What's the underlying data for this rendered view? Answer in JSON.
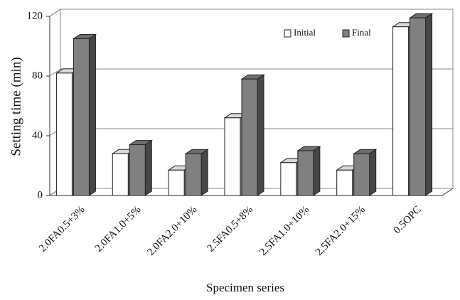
{
  "chart_data": {
    "type": "bar3d",
    "x_label": "Specimen series",
    "y_label": "Setting time (min)",
    "categories": [
      "2.0FA0.5+3%",
      "2.0FA1.0+5%",
      "2.0FA2.0+10%",
      "2.5FA0.5+8%",
      "2.5FA1.0+10%",
      "2.5FA2.0+15%",
      "0.5OPC"
    ],
    "series": [
      {
        "name": "Initial",
        "color": "#ffffff",
        "values": [
          82,
          28,
          17,
          52,
          22,
          17,
          113
        ]
      },
      {
        "name": "Final",
        "color": "#808080",
        "values": [
          105,
          34,
          28,
          78,
          30,
          28,
          119
        ]
      }
    ],
    "ylim": [
      0,
      120
    ],
    "yticks": [
      0,
      40,
      80,
      120
    ],
    "grid": true,
    "legend": "top-right"
  }
}
